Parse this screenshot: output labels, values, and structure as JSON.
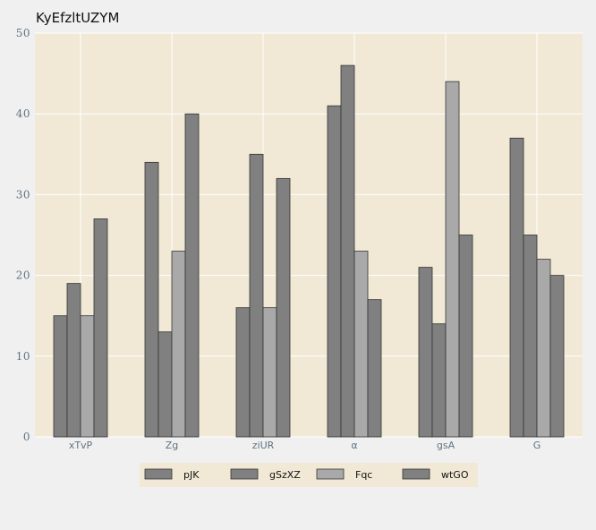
{
  "chart_data": {
    "type": "bar",
    "title": "KyEfzltUZYM",
    "xlabel": "",
    "ylabel": "",
    "categories": [
      "xTvP",
      "Zg",
      "ziUR",
      "α",
      "gsA",
      "G"
    ],
    "series": [
      {
        "name": "pJK",
        "values": [
          15,
          34,
          16,
          41,
          21,
          37
        ],
        "color": "#808080"
      },
      {
        "name": "gSzXZ",
        "values": [
          19,
          13,
          35,
          46,
          14,
          25
        ],
        "color": "#808080"
      },
      {
        "name": "Fqc",
        "values": [
          15,
          23,
          16,
          23,
          44,
          22
        ],
        "color": "#a9a9a9"
      },
      {
        "name": "wtGO",
        "values": [
          27,
          40,
          32,
          17,
          25,
          20
        ],
        "color": "#808080"
      }
    ],
    "ylim": [
      0,
      50
    ],
    "yticks": [
      0,
      10,
      20,
      30,
      40,
      50
    ],
    "grid": true,
    "legend_position": "bottom-center",
    "colors": {
      "plot_background": "#f1e9d5",
      "page_background": "#f0f0f0",
      "grid": "#ffffff",
      "tick_text": "#5f7382",
      "bar_edge": "#333333"
    }
  }
}
